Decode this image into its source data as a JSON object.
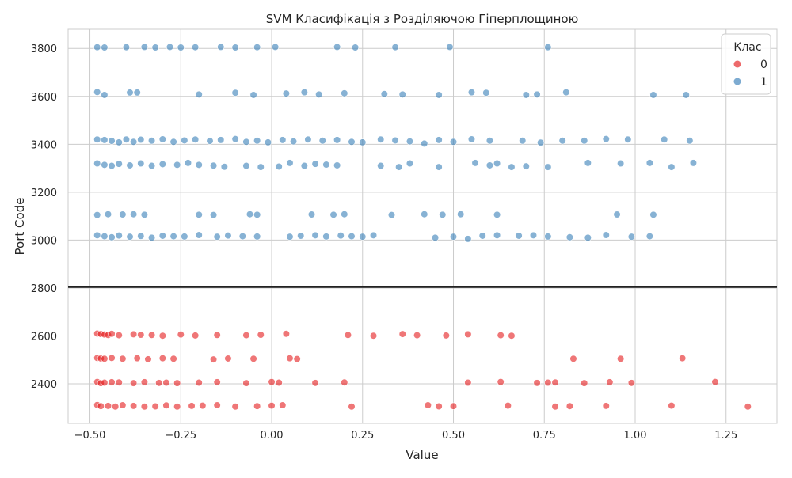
{
  "chart_data": {
    "type": "scatter",
    "title": "SVM Класифікація з Розділяючою Гіперплощиною",
    "xlabel": "Value",
    "ylabel": "Port Code",
    "xlim": [
      -0.56,
      1.39
    ],
    "ylim": [
      2235,
      3880
    ],
    "x_ticks": [
      -0.5,
      -0.25,
      0.0,
      0.25,
      0.5,
      0.75,
      1.0,
      1.25
    ],
    "x_tick_labels": [
      "−0.50",
      "−0.25",
      "0.00",
      "0.25",
      "0.50",
      "0.75",
      "1.00",
      "1.25"
    ],
    "y_ticks": [
      2400,
      2600,
      2800,
      3000,
      3200,
      3400,
      3600,
      3800
    ],
    "y_tick_labels": [
      "2400",
      "2600",
      "2800",
      "3000",
      "3200",
      "3400",
      "3600",
      "3800"
    ],
    "grid": true,
    "hyperplane_y": 2805,
    "legend": {
      "title": "Клас",
      "position": "top-right",
      "entries": [
        {
          "label": "0",
          "color": "#e41a1c"
        },
        {
          "label": "1",
          "color": "#377eb8"
        }
      ]
    },
    "series": [
      {
        "name": "0",
        "color": "#e41a1c",
        "points": [
          [
            -0.48,
            2610
          ],
          [
            -0.47,
            2608
          ],
          [
            -0.46,
            2606
          ],
          [
            -0.45,
            2604
          ],
          [
            -0.44,
            2609
          ],
          [
            -0.42,
            2603
          ],
          [
            -0.38,
            2607
          ],
          [
            -0.36,
            2605
          ],
          [
            -0.33,
            2604
          ],
          [
            -0.3,
            2601
          ],
          [
            -0.25,
            2606
          ],
          [
            -0.21,
            2602
          ],
          [
            -0.15,
            2604
          ],
          [
            -0.07,
            2603
          ],
          [
            -0.03,
            2605
          ],
          [
            0.04,
            2609
          ],
          [
            0.21,
            2604
          ],
          [
            0.28,
            2601
          ],
          [
            0.36,
            2608
          ],
          [
            0.4,
            2603
          ],
          [
            0.48,
            2602
          ],
          [
            0.54,
            2607
          ],
          [
            0.63,
            2603
          ],
          [
            0.66,
            2601
          ],
          [
            -0.48,
            2508
          ],
          [
            -0.47,
            2506
          ],
          [
            -0.46,
            2505
          ],
          [
            -0.44,
            2508
          ],
          [
            -0.41,
            2505
          ],
          [
            -0.37,
            2507
          ],
          [
            -0.34,
            2503
          ],
          [
            -0.3,
            2507
          ],
          [
            -0.27,
            2505
          ],
          [
            -0.16,
            2502
          ],
          [
            -0.12,
            2506
          ],
          [
            -0.05,
            2505
          ],
          [
            0.05,
            2507
          ],
          [
            0.07,
            2504
          ],
          [
            0.83,
            2505
          ],
          [
            0.96,
            2505
          ],
          [
            1.13,
            2507
          ],
          [
            -0.48,
            2408
          ],
          [
            -0.47,
            2403
          ],
          [
            -0.46,
            2405
          ],
          [
            -0.44,
            2407
          ],
          [
            -0.42,
            2406
          ],
          [
            -0.38,
            2403
          ],
          [
            -0.35,
            2407
          ],
          [
            -0.31,
            2404
          ],
          [
            -0.29,
            2405
          ],
          [
            -0.26,
            2403
          ],
          [
            -0.2,
            2405
          ],
          [
            -0.15,
            2407
          ],
          [
            -0.07,
            2403
          ],
          [
            0.0,
            2408
          ],
          [
            0.02,
            2405
          ],
          [
            0.12,
            2404
          ],
          [
            0.2,
            2406
          ],
          [
            0.54,
            2405
          ],
          [
            0.63,
            2408
          ],
          [
            0.73,
            2404
          ],
          [
            0.76,
            2405
          ],
          [
            0.78,
            2406
          ],
          [
            0.86,
            2403
          ],
          [
            0.93,
            2407
          ],
          [
            0.99,
            2404
          ],
          [
            1.22,
            2408
          ],
          [
            -0.48,
            2312
          ],
          [
            -0.47,
            2307
          ],
          [
            -0.45,
            2308
          ],
          [
            -0.43,
            2305
          ],
          [
            -0.41,
            2311
          ],
          [
            -0.38,
            2308
          ],
          [
            -0.35,
            2305
          ],
          [
            -0.32,
            2306
          ],
          [
            -0.29,
            2310
          ],
          [
            -0.26,
            2305
          ],
          [
            -0.22,
            2308
          ],
          [
            -0.19,
            2309
          ],
          [
            -0.15,
            2311
          ],
          [
            -0.1,
            2305
          ],
          [
            -0.04,
            2307
          ],
          [
            0.0,
            2309
          ],
          [
            0.03,
            2311
          ],
          [
            0.22,
            2305
          ],
          [
            0.43,
            2311
          ],
          [
            0.46,
            2306
          ],
          [
            0.5,
            2307
          ],
          [
            0.65,
            2309
          ],
          [
            0.78,
            2305
          ],
          [
            0.82,
            2307
          ],
          [
            0.92,
            2308
          ],
          [
            1.1,
            2309
          ],
          [
            1.31,
            2305
          ]
        ]
      },
      {
        "name": "1",
        "color": "#377eb8",
        "points": [
          [
            -0.48,
            3805
          ],
          [
            -0.46,
            3804
          ],
          [
            -0.4,
            3805
          ],
          [
            -0.35,
            3806
          ],
          [
            -0.32,
            3804
          ],
          [
            -0.28,
            3806
          ],
          [
            -0.25,
            3804
          ],
          [
            -0.21,
            3805
          ],
          [
            -0.14,
            3806
          ],
          [
            -0.1,
            3804
          ],
          [
            -0.04,
            3805
          ],
          [
            0.01,
            3806
          ],
          [
            0.18,
            3806
          ],
          [
            0.23,
            3804
          ],
          [
            0.34,
            3805
          ],
          [
            0.49,
            3806
          ],
          [
            0.76,
            3805
          ],
          [
            -0.48,
            3618
          ],
          [
            -0.46,
            3606
          ],
          [
            -0.39,
            3616
          ],
          [
            -0.37,
            3616
          ],
          [
            -0.2,
            3608
          ],
          [
            -0.1,
            3615
          ],
          [
            -0.05,
            3606
          ],
          [
            0.04,
            3612
          ],
          [
            0.09,
            3617
          ],
          [
            0.13,
            3608
          ],
          [
            0.2,
            3613
          ],
          [
            0.31,
            3610
          ],
          [
            0.36,
            3608
          ],
          [
            0.46,
            3606
          ],
          [
            0.55,
            3617
          ],
          [
            0.59,
            3615
          ],
          [
            0.7,
            3606
          ],
          [
            0.73,
            3608
          ],
          [
            0.81,
            3617
          ],
          [
            1.05,
            3606
          ],
          [
            1.14,
            3606
          ],
          [
            -0.48,
            3420
          ],
          [
            -0.46,
            3418
          ],
          [
            -0.44,
            3414
          ],
          [
            -0.42,
            3408
          ],
          [
            -0.4,
            3420
          ],
          [
            -0.38,
            3410
          ],
          [
            -0.36,
            3419
          ],
          [
            -0.33,
            3415
          ],
          [
            -0.3,
            3421
          ],
          [
            -0.27,
            3410
          ],
          [
            -0.24,
            3416
          ],
          [
            -0.21,
            3420
          ],
          [
            -0.17,
            3414
          ],
          [
            -0.14,
            3418
          ],
          [
            -0.1,
            3422
          ],
          [
            -0.07,
            3410
          ],
          [
            -0.04,
            3415
          ],
          [
            -0.01,
            3408
          ],
          [
            0.03,
            3418
          ],
          [
            0.06,
            3412
          ],
          [
            0.1,
            3420
          ],
          [
            0.14,
            3415
          ],
          [
            0.18,
            3418
          ],
          [
            0.22,
            3410
          ],
          [
            0.25,
            3408
          ],
          [
            0.3,
            3420
          ],
          [
            0.34,
            3416
          ],
          [
            0.38,
            3412
          ],
          [
            0.42,
            3403
          ],
          [
            0.46,
            3418
          ],
          [
            0.5,
            3410
          ],
          [
            0.55,
            3421
          ],
          [
            0.6,
            3415
          ],
          [
            0.69,
            3415
          ],
          [
            0.74,
            3407
          ],
          [
            0.8,
            3415
          ],
          [
            0.86,
            3415
          ],
          [
            0.92,
            3422
          ],
          [
            0.98,
            3420
          ],
          [
            1.08,
            3420
          ],
          [
            1.15,
            3415
          ],
          [
            -0.48,
            3320
          ],
          [
            -0.46,
            3314
          ],
          [
            -0.44,
            3310
          ],
          [
            -0.42,
            3318
          ],
          [
            -0.39,
            3312
          ],
          [
            -0.36,
            3320
          ],
          [
            -0.33,
            3310
          ],
          [
            -0.3,
            3317
          ],
          [
            -0.26,
            3314
          ],
          [
            -0.23,
            3322
          ],
          [
            -0.2,
            3314
          ],
          [
            -0.16,
            3311
          ],
          [
            -0.13,
            3306
          ],
          [
            -0.07,
            3310
          ],
          [
            -0.03,
            3305
          ],
          [
            0.02,
            3307
          ],
          [
            0.05,
            3322
          ],
          [
            0.09,
            3310
          ],
          [
            0.12,
            3318
          ],
          [
            0.15,
            3315
          ],
          [
            0.18,
            3312
          ],
          [
            0.3,
            3310
          ],
          [
            0.35,
            3305
          ],
          [
            0.38,
            3320
          ],
          [
            0.46,
            3305
          ],
          [
            0.56,
            3322
          ],
          [
            0.6,
            3312
          ],
          [
            0.62,
            3320
          ],
          [
            0.66,
            3305
          ],
          [
            0.7,
            3308
          ],
          [
            0.76,
            3305
          ],
          [
            0.87,
            3322
          ],
          [
            0.96,
            3320
          ],
          [
            1.04,
            3322
          ],
          [
            1.1,
            3305
          ],
          [
            1.16,
            3322
          ],
          [
            -0.48,
            3105
          ],
          [
            -0.45,
            3108
          ],
          [
            -0.41,
            3107
          ],
          [
            -0.38,
            3108
          ],
          [
            -0.35,
            3106
          ],
          [
            -0.2,
            3106
          ],
          [
            -0.16,
            3105
          ],
          [
            -0.06,
            3108
          ],
          [
            -0.04,
            3106
          ],
          [
            0.11,
            3107
          ],
          [
            0.17,
            3106
          ],
          [
            0.2,
            3108
          ],
          [
            0.33,
            3105
          ],
          [
            0.42,
            3108
          ],
          [
            0.47,
            3106
          ],
          [
            0.52,
            3108
          ],
          [
            0.62,
            3106
          ],
          [
            0.95,
            3107
          ],
          [
            1.05,
            3106
          ],
          [
            -0.48,
            3020
          ],
          [
            -0.46,
            3016
          ],
          [
            -0.44,
            3012
          ],
          [
            -0.42,
            3019
          ],
          [
            -0.39,
            3014
          ],
          [
            -0.36,
            3017
          ],
          [
            -0.33,
            3010
          ],
          [
            -0.3,
            3018
          ],
          [
            -0.27,
            3016
          ],
          [
            -0.24,
            3015
          ],
          [
            -0.2,
            3021
          ],
          [
            -0.15,
            3014
          ],
          [
            -0.12,
            3019
          ],
          [
            -0.08,
            3016
          ],
          [
            -0.04,
            3015
          ],
          [
            0.05,
            3014
          ],
          [
            0.08,
            3018
          ],
          [
            0.12,
            3020
          ],
          [
            0.15,
            3015
          ],
          [
            0.19,
            3019
          ],
          [
            0.22,
            3016
          ],
          [
            0.25,
            3014
          ],
          [
            0.28,
            3020
          ],
          [
            0.45,
            3010
          ],
          [
            0.5,
            3014
          ],
          [
            0.54,
            3005
          ],
          [
            0.58,
            3018
          ],
          [
            0.62,
            3020
          ],
          [
            0.68,
            3018
          ],
          [
            0.72,
            3020
          ],
          [
            0.76,
            3015
          ],
          [
            0.82,
            3012
          ],
          [
            0.87,
            3010
          ],
          [
            0.92,
            3021
          ],
          [
            0.99,
            3014
          ],
          [
            1.04,
            3016
          ]
        ]
      }
    ]
  }
}
